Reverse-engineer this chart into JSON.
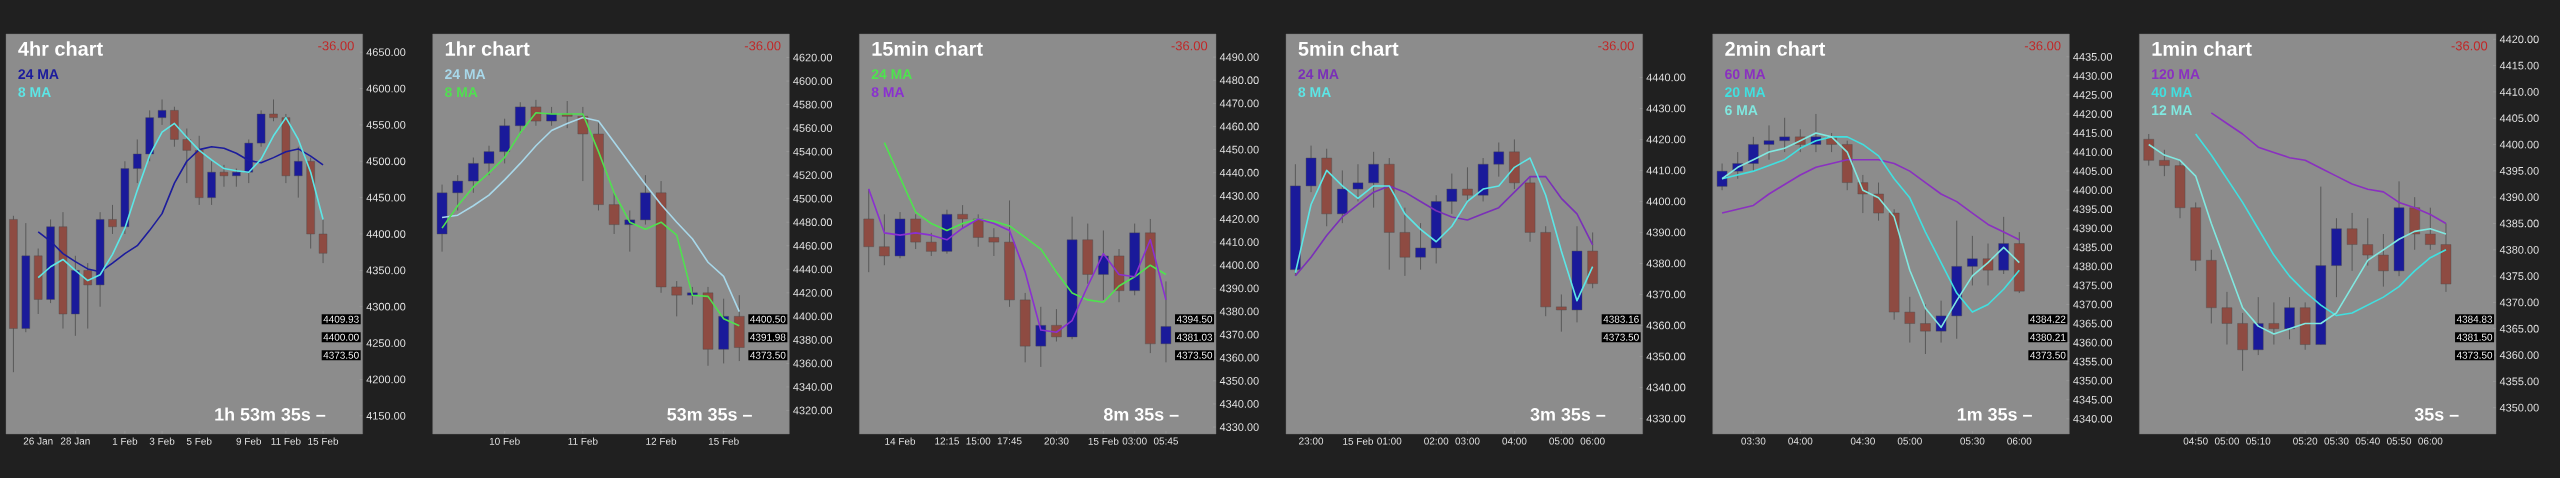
{
  "chart_data": [
    {
      "type": "candlestick",
      "title": "4hr chart",
      "categories": [
        null,
        null,
        "26 Jan",
        null,
        null,
        "28 Jan",
        null,
        null,
        null,
        "1 Feb",
        null,
        null,
        "3 Feb",
        null,
        null,
        "5 Feb",
        null,
        null,
        null,
        "9 Feb",
        null,
        null,
        "11 Feb",
        null,
        null,
        "15 Feb"
      ],
      "ohlc": [
        [
          4420,
          4425,
          4210,
          4270
        ],
        [
          4270,
          4415,
          4265,
          4370
        ],
        [
          4370,
          4380,
          4290,
          4310
        ],
        [
          4310,
          4420,
          4305,
          4410
        ],
        [
          4410,
          4430,
          4270,
          4290
        ],
        [
          4290,
          4370,
          4260,
          4350
        ],
        [
          4350,
          4360,
          4270,
          4330
        ],
        [
          4330,
          4430,
          4300,
          4420
        ],
        [
          4420,
          4440,
          4400,
          4410
        ],
        [
          4410,
          4500,
          4400,
          4490
        ],
        [
          4490,
          4530,
          4470,
          4510
        ],
        [
          4510,
          4570,
          4500,
          4560
        ],
        [
          4560,
          4585,
          4550,
          4570
        ],
        [
          4570,
          4575,
          4520,
          4530
        ],
        [
          4530,
          4545,
          4470,
          4515
        ],
        [
          4515,
          4535,
          4440,
          4450
        ],
        [
          4450,
          4500,
          4440,
          4485
        ],
        [
          4485,
          4495,
          4465,
          4480
        ],
        [
          4480,
          4490,
          4465,
          4485
        ],
        [
          4485,
          4530,
          4470,
          4525
        ],
        [
          4525,
          4570,
          4520,
          4565
        ],
        [
          4565,
          4585,
          4555,
          4560
        ],
        [
          4560,
          4565,
          4470,
          4480
        ],
        [
          4480,
          4520,
          4450,
          4500
        ],
        [
          4500,
          4505,
          4380,
          4400
        ],
        [
          4400,
          4420,
          4360,
          4373.5
        ]
      ],
      "series": [
        {
          "name": "24 MA",
          "type": "line",
          "color": "#1c1c9c",
          "values": [
            null,
            null,
            4403,
            4390,
            4373,
            4362,
            4352,
            4348,
            4360,
            4373,
            4384,
            4405,
            4428,
            4470,
            4500,
            4516,
            4520,
            4518,
            4511,
            4501,
            4498,
            4505,
            4513,
            4517,
            4507,
            4495
          ]
        },
        {
          "name": "8 MA",
          "type": "line",
          "color": "#5ce6e6",
          "values": [
            null,
            null,
            4340,
            4355,
            4365,
            4350,
            4336,
            4344,
            4372,
            4408,
            4460,
            4508,
            4540,
            4552,
            4533,
            4515,
            4502,
            4490,
            4487,
            4485,
            4503,
            4535,
            4560,
            4530,
            4485,
            4420
          ]
        }
      ],
      "ylim": [
        4125,
        4675
      ],
      "yticks": [
        {
          "value": 4150,
          "label": "4150.00"
        },
        {
          "value": 4200,
          "label": "4200.00"
        },
        {
          "value": 4250,
          "label": "4250.00"
        },
        {
          "value": 4300,
          "label": "4300.00"
        },
        {
          "value": 4350,
          "label": "4350.00"
        },
        {
          "value": 4400,
          "label": "4400.00"
        },
        {
          "value": 4450,
          "label": "4450.00"
        },
        {
          "value": 4500,
          "label": "4500.00"
        },
        {
          "value": 4550,
          "label": "4550.00"
        },
        {
          "value": 4600,
          "label": "4600.00"
        },
        {
          "value": 4650,
          "label": "4650.00"
        }
      ],
      "annotations": [
        "-36.00",
        "1h 53m 35s –",
        "4409.93",
        "4400.00",
        "4373.50"
      ]
    },
    {
      "type": "candlestick",
      "title": "1hr chart",
      "categories": [
        null,
        null,
        null,
        null,
        "10 Feb",
        null,
        null,
        null,
        null,
        "11 Feb",
        null,
        null,
        null,
        null,
        "12 Feb",
        null,
        null,
        null,
        "15 Feb",
        null
      ],
      "ohlc": [
        [
          4470,
          4512,
          4455,
          4505
        ],
        [
          4505,
          4520,
          4490,
          4515
        ],
        [
          4515,
          4535,
          4505,
          4530
        ],
        [
          4530,
          4545,
          4520,
          4540
        ],
        [
          4540,
          4568,
          4530,
          4562
        ],
        [
          4562,
          4582,
          4555,
          4578
        ],
        [
          4578,
          4584,
          4562,
          4566
        ],
        [
          4566,
          4578,
          4562,
          4572
        ],
        [
          4572,
          4583,
          4560,
          4570
        ],
        [
          4570,
          4578,
          4515,
          4555
        ],
        [
          4555,
          4565,
          4490,
          4495
        ],
        [
          4495,
          4505,
          4470,
          4478
        ],
        [
          4478,
          4490,
          4455,
          4482
        ],
        [
          4482,
          4520,
          4478,
          4505
        ],
        [
          4505,
          4515,
          4420,
          4425
        ],
        [
          4425,
          4430,
          4400,
          4418
        ],
        [
          4418,
          4425,
          4410,
          4420
        ],
        [
          4420,
          4425,
          4358,
          4372
        ],
        [
          4372,
          4415,
          4360,
          4400
        ],
        [
          4400,
          4418,
          4362,
          4373.5
        ]
      ],
      "series": [
        {
          "name": "24 MA",
          "type": "line",
          "color": "#a8d8ea",
          "values": [
            4484,
            4486,
            4494,
            4503,
            4516,
            4530,
            4545,
            4558,
            4564,
            4569,
            4566,
            4548,
            4530,
            4512,
            4495,
            4480,
            4466,
            4446,
            4434,
            4404
          ]
        },
        {
          "name": "8 MA",
          "type": "line",
          "color": "#50e050",
          "values": [
            4475,
            4494,
            4510,
            4522,
            4535,
            4556,
            4573,
            4572,
            4572,
            4572,
            4540,
            4505,
            4480,
            4474,
            4480,
            4469,
            4418,
            4417,
            4398,
            4392
          ]
        }
      ],
      "ylim": [
        4300,
        4640
      ],
      "yticks": [
        {
          "value": 4320,
          "label": "4320.00"
        },
        {
          "value": 4340,
          "label": "4340.00"
        },
        {
          "value": 4360,
          "label": "4360.00"
        },
        {
          "value": 4380,
          "label": "4380.00"
        },
        {
          "value": 4400,
          "label": "4400.00"
        },
        {
          "value": 4420,
          "label": "4420.00"
        },
        {
          "value": 4440,
          "label": "4440.00"
        },
        {
          "value": 4460,
          "label": "4460.00"
        },
        {
          "value": 4480,
          "label": "4480.00"
        },
        {
          "value": 4500,
          "label": "4500.00"
        },
        {
          "value": 4520,
          "label": "4520.00"
        },
        {
          "value": 4540,
          "label": "4540.00"
        },
        {
          "value": 4560,
          "label": "4560.00"
        },
        {
          "value": 4580,
          "label": "4580.00"
        },
        {
          "value": 4600,
          "label": "4600.00"
        },
        {
          "value": 4620,
          "label": "4620.00"
        }
      ],
      "annotations": [
        "-36.00",
        "53m 35s –",
        "4400.50",
        "4391.98",
        "4373.50"
      ]
    },
    {
      "type": "candlestick",
      "title": "15min chart",
      "categories": [
        null,
        null,
        "14 Feb",
        null,
        null,
        "12:15",
        null,
        "15:00",
        null,
        "17:45",
        null,
        null,
        "20:30",
        null,
        null,
        "15 Feb",
        null,
        "03:00",
        null,
        "05:45"
      ],
      "ohlc": [
        [
          4420,
          4433,
          4397,
          4408
        ],
        [
          4408,
          4422,
          4400,
          4404
        ],
        [
          4404,
          4423,
          4403,
          4420
        ],
        [
          4420,
          4422,
          4407,
          4410
        ],
        [
          4410,
          4414,
          4404,
          4406
        ],
        [
          4406,
          4424,
          4405,
          4422
        ],
        [
          4422,
          4426,
          4416,
          4420
        ],
        [
          4420,
          4422,
          4408,
          4412
        ],
        [
          4412,
          4416,
          4404,
          4410
        ],
        [
          4410,
          4428,
          4382,
          4385
        ],
        [
          4385,
          4388,
          4358,
          4365
        ],
        [
          4365,
          4382,
          4356,
          4374
        ],
        [
          4374,
          4381,
          4367,
          4369
        ],
        [
          4369,
          4421,
          4368,
          4411
        ],
        [
          4411,
          4418,
          4392,
          4396
        ],
        [
          4396,
          4415,
          4385,
          4404
        ],
        [
          4404,
          4407,
          4384,
          4389
        ],
        [
          4389,
          4418,
          4387,
          4414
        ],
        [
          4414,
          4420,
          4362,
          4366
        ],
        [
          4366,
          4393,
          4358,
          4373.5
        ]
      ],
      "series": [
        {
          "name": "24 MA",
          "type": "line",
          "color": "#4ee44e",
          "values": [
            null,
            4453,
            4438,
            4423,
            4418,
            4415,
            4418,
            4420,
            4419,
            4417,
            4412,
            4407,
            4397,
            4388,
            4385,
            4384,
            4391,
            4395,
            4400,
            4396
          ]
        },
        {
          "name": "8 MA",
          "type": "line",
          "color": "#8a30d0",
          "values": [
            4433,
            4414,
            4413,
            4414,
            4413,
            4411,
            4416,
            4420,
            4418,
            4415,
            4397,
            4372,
            4371,
            4376,
            4391,
            4405,
            4396,
            4395,
            4411,
            4385
          ]
        }
      ],
      "ylim": [
        4327,
        4500
      ],
      "yticks": [
        {
          "value": 4330,
          "label": "4330.00"
        },
        {
          "value": 4340,
          "label": "4340.00"
        },
        {
          "value": 4350,
          "label": "4350.00"
        },
        {
          "value": 4360,
          "label": "4360.00"
        },
        {
          "value": 4370,
          "label": "4370.00"
        },
        {
          "value": 4380,
          "label": "4380.00"
        },
        {
          "value": 4390,
          "label": "4390.00"
        },
        {
          "value": 4400,
          "label": "4400.00"
        },
        {
          "value": 4410,
          "label": "4410.00"
        },
        {
          "value": 4420,
          "label": "4420.00"
        },
        {
          "value": 4430,
          "label": "4430.00"
        },
        {
          "value": 4440,
          "label": "4440.00"
        },
        {
          "value": 4450,
          "label": "4450.00"
        },
        {
          "value": 4460,
          "label": "4460.00"
        },
        {
          "value": 4470,
          "label": "4470.00"
        },
        {
          "value": 4480,
          "label": "4480.00"
        },
        {
          "value": 4490,
          "label": "4490.00"
        }
      ],
      "annotations": [
        "-36.00",
        "8m 35s –",
        "4394.50",
        "4381.03",
        "4373.50"
      ]
    },
    {
      "type": "candlestick",
      "title": "5min chart",
      "categories": [
        null,
        "23:00",
        null,
        null,
        "15 Feb",
        null,
        "01:00",
        null,
        null,
        "02:00",
        null,
        "03:00",
        null,
        null,
        "04:00",
        null,
        null,
        "05:00",
        null,
        "06:00"
      ],
      "ohlc": [
        [
          4378,
          4412,
          4376,
          4405
        ],
        [
          4405,
          4418,
          4403,
          4414
        ],
        [
          4414,
          4417,
          4392,
          4396
        ],
        [
          4396,
          4410,
          4393,
          4404
        ],
        [
          4404,
          4412,
          4400,
          4406
        ],
        [
          4406,
          4416,
          4398,
          4412
        ],
        [
          4412,
          4414,
          4378,
          4390
        ],
        [
          4390,
          4398,
          4376,
          4382
        ],
        [
          4382,
          4393,
          4378,
          4385
        ],
        [
          4385,
          4402,
          4380,
          4400
        ],
        [
          4400,
          4409,
          4396,
          4404
        ],
        [
          4404,
          4411,
          4400,
          4402
        ],
        [
          4402,
          4414,
          4400,
          4412
        ],
        [
          4412,
          4419,
          4408,
          4416
        ],
        [
          4416,
          4420,
          4404,
          4406
        ],
        [
          4406,
          4408,
          4387,
          4390
        ],
        [
          4390,
          4392,
          4363,
          4366
        ],
        [
          4366,
          4370,
          4358,
          4365
        ],
        [
          4365,
          4392,
          4361,
          4384
        ],
        [
          4384,
          4390,
          4372,
          4373.5
        ]
      ],
      "series": [
        {
          "name": "24 MA",
          "type": "line",
          "color": "#7a30b8",
          "values": [
            4376,
            4382,
            4389,
            4395,
            4399,
            4403,
            4405,
            4403,
            4400,
            4397,
            4395,
            4394,
            4396,
            4398,
            4403,
            4408,
            4408,
            4401,
            4396,
            4386
          ]
        },
        {
          "name": "8 MA",
          "type": "line",
          "color": "#5ce6e6",
          "values": [
            4377,
            4399,
            4410,
            4405,
            4401,
            4405,
            4405,
            4396,
            4391,
            4387,
            4392,
            4400,
            4404,
            4405,
            4411,
            4414,
            4402,
            4384,
            4368,
            4379
          ]
        }
      ],
      "ylim": [
        4325,
        4454
      ],
      "yticks": [
        {
          "value": 4330,
          "label": "4330.00"
        },
        {
          "value": 4340,
          "label": "4340.00"
        },
        {
          "value": 4350,
          "label": "4350.00"
        },
        {
          "value": 4360,
          "label": "4360.00"
        },
        {
          "value": 4370,
          "label": "4370.00"
        },
        {
          "value": 4380,
          "label": "4380.00"
        },
        {
          "value": 4390,
          "label": "4390.00"
        },
        {
          "value": 4400,
          "label": "4400.00"
        },
        {
          "value": 4410,
          "label": "4410.00"
        },
        {
          "value": 4420,
          "label": "4420.00"
        },
        {
          "value": 4430,
          "label": "4430.00"
        },
        {
          "value": 4440,
          "label": "4440.00"
        }
      ],
      "annotations": [
        "-36.00",
        "3m 35s –",
        "4383.16",
        "4373.50"
      ]
    },
    {
      "type": "candlestick",
      "title": "2min chart",
      "categories": [
        null,
        null,
        "03:30",
        null,
        null,
        "04:00",
        null,
        null,
        null,
        "04:30",
        null,
        null,
        "05:00",
        null,
        null,
        null,
        "05:30",
        null,
        null,
        "06:00"
      ],
      "ohlc": [
        [
          4401,
          4407,
          4400,
          4405
        ],
        [
          4405,
          4410,
          4403,
          4407
        ],
        [
          4407,
          4414,
          4405,
          4412
        ],
        [
          4412,
          4417,
          4408,
          4413
        ],
        [
          4413,
          4419,
          4410,
          4414
        ],
        [
          4414,
          4416,
          4410,
          4412
        ],
        [
          4412,
          4420,
          4410,
          4414
        ],
        [
          4414,
          4415,
          4410,
          4412
        ],
        [
          4412,
          4413,
          4400,
          4402
        ],
        [
          4402,
          4404,
          4394,
          4399
        ],
        [
          4399,
          4402,
          4392,
          4394
        ],
        [
          4394,
          4395,
          4366,
          4368
        ],
        [
          4368,
          4372,
          4360,
          4365
        ],
        [
          4365,
          4370,
          4357,
          4363
        ],
        [
          4363,
          4371,
          4360,
          4367
        ],
        [
          4367,
          4392,
          4361,
          4380
        ],
        [
          4380,
          4388,
          4375,
          4382
        ],
        [
          4382,
          4386,
          4375,
          4379
        ],
        [
          4379,
          4393,
          4378,
          4386
        ],
        [
          4386,
          4389,
          4373,
          4373.5
        ]
      ],
      "series": [
        {
          "name": "60 MA",
          "type": "line",
          "color": "#8a30c0",
          "values": [
            4394,
            4395,
            4396,
            4399,
            4401.5,
            4404,
            4406,
            4407,
            4408,
            4408,
            4408,
            4407,
            4405,
            4402,
            4399,
            4397,
            4394,
            4391,
            4389,
            4387
          ]
        },
        {
          "name": "20 MA",
          "type": "line",
          "color": "#40e0e0",
          "values": [
            4403,
            4404,
            4405,
            4406.5,
            4408,
            4411,
            4413,
            4414,
            4414,
            4412,
            4409,
            4403,
            4398,
            4389,
            4381,
            4373,
            4368,
            4370,
            4374,
            4379
          ]
        },
        {
          "name": "6 MA",
          "type": "line",
          "color": "#80e8e0",
          "values": [
            4403,
            4406,
            4408,
            4410,
            4411,
            4413,
            4415,
            4414,
            4410,
            4400,
            4398,
            4393,
            4379,
            4369,
            4364,
            4371,
            4377.5,
            4381,
            4385,
            4381
          ]
        }
      ],
      "ylim": [
        4336,
        4441
      ],
      "yticks": [
        {
          "value": 4340,
          "label": "4340.00"
        },
        {
          "value": 4345,
          "label": "4345.00"
        },
        {
          "value": 4350,
          "label": "4350.00"
        },
        {
          "value": 4355,
          "label": "4355.00"
        },
        {
          "value": 4360,
          "label": "4360.00"
        },
        {
          "value": 4365,
          "label": "4365.00"
        },
        {
          "value": 4370,
          "label": "4370.00"
        },
        {
          "value": 4375,
          "label": "4375.00"
        },
        {
          "value": 4380,
          "label": "4380.00"
        },
        {
          "value": 4385,
          "label": "4385.00"
        },
        {
          "value": 4390,
          "label": "4390.00"
        },
        {
          "value": 4395,
          "label": "4395.00"
        },
        {
          "value": 4400,
          "label": "4400.00"
        },
        {
          "value": 4405,
          "label": "4405.00"
        },
        {
          "value": 4410,
          "label": "4410.00"
        },
        {
          "value": 4415,
          "label": "4415.00"
        },
        {
          "value": 4420,
          "label": "4420.00"
        },
        {
          "value": 4425,
          "label": "4425.00"
        },
        {
          "value": 4430,
          "label": "4430.00"
        },
        {
          "value": 4435,
          "label": "4435.00"
        }
      ],
      "annotations": [
        "-36.00",
        "1m 35s –",
        "4384.22",
        "4380.21",
        "4373.50"
      ]
    },
    {
      "type": "candlestick",
      "title": "1min chart",
      "categories": [
        null,
        null,
        null,
        "04:50",
        null,
        "05:00",
        null,
        "05:10",
        null,
        null,
        "05:20",
        null,
        "05:30",
        null,
        "05:40",
        null,
        "05:50",
        null,
        "06:00",
        null
      ],
      "ohlc": [
        [
          4401,
          4402,
          4396,
          4397
        ],
        [
          4397,
          4399,
          4394,
          4396
        ],
        [
          4396,
          4397,
          4386,
          4388
        ],
        [
          4388,
          4389,
          4376,
          4378
        ],
        [
          4378,
          4380,
          4366,
          4369
        ],
        [
          4369,
          4372,
          4362,
          4366
        ],
        [
          4366,
          4368,
          4357,
          4361
        ],
        [
          4361,
          4371,
          4360,
          4366
        ],
        [
          4366,
          4370,
          4362,
          4365
        ],
        [
          4365,
          4371,
          4363,
          4369
        ],
        [
          4369,
          4370,
          4361,
          4362
        ],
        [
          4362,
          4392,
          4362,
          4377
        ],
        [
          4377,
          4386,
          4371,
          4384
        ],
        [
          4384,
          4387,
          4376,
          4381
        ],
        [
          4381,
          4386,
          4377,
          4379
        ],
        [
          4379,
          4383,
          4373,
          4376
        ],
        [
          4376,
          4393,
          4375,
          4388
        ],
        [
          4388,
          4390,
          4380,
          4383
        ],
        [
          4383,
          4388,
          4380,
          4381
        ],
        [
          4381,
          4385,
          4372,
          4373.5
        ]
      ],
      "series": [
        {
          "name": "120 MA",
          "type": "line",
          "color": "#8a30c0",
          "values": [
            null,
            null,
            null,
            null,
            4406,
            4404,
            4402,
            4399.5,
            4398.5,
            4397.5,
            4397,
            4395.5,
            4394,
            4392.5,
            4391.5,
            4391,
            4389,
            4388,
            4386.7,
            4385
          ]
        },
        {
          "name": "40 MA",
          "type": "line",
          "color": "#40e0e0",
          "values": [
            null,
            null,
            null,
            4402,
            4398,
            4393.5,
            4389,
            4384,
            4379,
            4375,
            4372,
            4369.5,
            4367.5,
            4368,
            4369.5,
            4371,
            4373,
            4376,
            4378.5,
            4380
          ]
        },
        {
          "name": "12 MA",
          "type": "line",
          "color": "#80e8e0",
          "values": [
            4400,
            4398,
            4397,
            4394,
            4385,
            4377,
            4369,
            4365.5,
            4364,
            4365,
            4366,
            4366,
            4368,
            4373,
            4378,
            4380,
            4382,
            4383.5,
            4384,
            4383
          ]
        }
      ],
      "ylim": [
        4345,
        4421
      ],
      "yticks": [
        {
          "value": 4350,
          "label": "4350.00"
        },
        {
          "value": 4355,
          "label": "4355.00"
        },
        {
          "value": 4360,
          "label": "4360.00"
        },
        {
          "value": 4365,
          "label": "4365.00"
        },
        {
          "value": 4370,
          "label": "4370.00"
        },
        {
          "value": 4375,
          "label": "4375.00"
        },
        {
          "value": 4380,
          "label": "4380.00"
        },
        {
          "value": 4385,
          "label": "4385.00"
        },
        {
          "value": 4390,
          "label": "4390.00"
        },
        {
          "value": 4395,
          "label": "4395.00"
        },
        {
          "value": 4400,
          "label": "4400.00"
        },
        {
          "value": 4405,
          "label": "4405.00"
        },
        {
          "value": 4410,
          "label": "4410.00"
        },
        {
          "value": 4415,
          "label": "4415.00"
        },
        {
          "value": 4420,
          "label": "4420.00"
        }
      ],
      "annotations": [
        "-36.00",
        "35s –",
        "4384.83",
        "4381.50",
        "4373.50"
      ]
    }
  ]
}
